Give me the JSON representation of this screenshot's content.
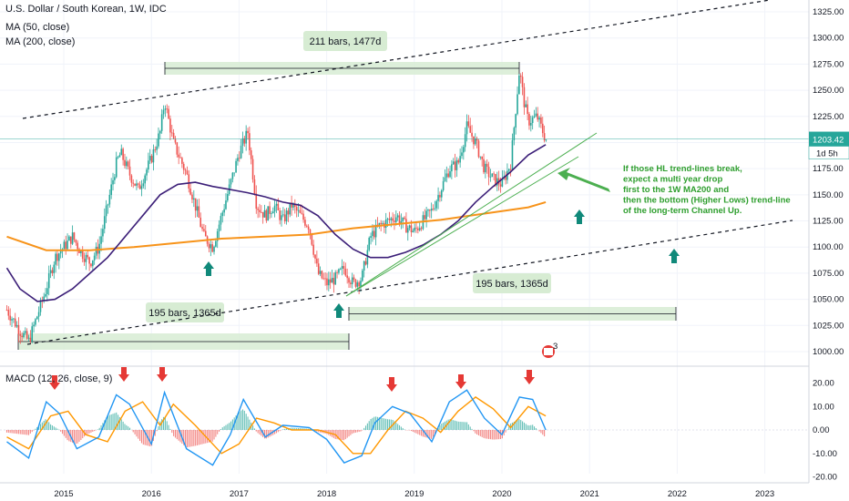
{
  "header": {
    "title": "U.S. Dollar / South Korean, 1W, IDC",
    "ma50": "MA (50, close)",
    "ma200": "MA (200, close)",
    "macd": "MACD (12, 26, close, 9)"
  },
  "price_badge": {
    "value": "1203.42",
    "countdown": "1d 5h"
  },
  "annotation": "If those HL trend-lines break, expect a multi year drop first to the 1W MA200 and then the bottom (Higher Lows) trend-line of the long-term Channel Up.",
  "annotation_lines": [
    "If those HL trend-lines break,",
    "expect a multi year drop",
    "first to the 1W MA200 and",
    "then the bottom (Higher Lows) trend-line",
    "of the long-term Channel Up."
  ],
  "measures": [
    {
      "label": "211 bars, 1477d"
    },
    {
      "label": "195 bars, 1365d"
    },
    {
      "label": "195 bars, 1365d"
    }
  ],
  "event_badge": "3",
  "colors": {
    "up": "#26a69a",
    "down": "#ef5350",
    "ma50": "#3c1f78",
    "ma200": "#f7931a",
    "macd": "#2196f3",
    "signal": "#ff9800",
    "trend": "#4caf50",
    "measure_fill": "#d7ecd3",
    "arrow_up": "#10897a",
    "arrow_down": "#e53935"
  },
  "chart_data": {
    "type": "line",
    "title": "U.S. Dollar / South Korean, 1W, IDC",
    "x_ticks": [
      "2015",
      "2016",
      "2017",
      "2018",
      "2019",
      "2020",
      "2021",
      "2022",
      "2023"
    ],
    "y_ticks": [
      1000,
      1025,
      1050,
      1075,
      1100,
      1125,
      1150,
      1175,
      1200,
      1225,
      1250,
      1275,
      1300,
      1325
    ],
    "ylim": [
      990,
      1335
    ],
    "macd_ticks": [
      "20.00",
      "10.00",
      "0.00",
      "-10.00",
      "-20.00"
    ],
    "macd_ylim": [
      -21,
      24
    ],
    "series": [
      {
        "name": "Price",
        "x": [
          2014.35,
          2014.5,
          2014.6,
          2014.7,
          2014.8,
          2014.9,
          2015.0,
          2015.1,
          2015.2,
          2015.3,
          2015.4,
          2015.5,
          2015.6,
          2015.65,
          2015.75,
          2015.85,
          2016.0,
          2016.1,
          2016.15,
          2016.25,
          2016.4,
          2016.5,
          2016.6,
          2016.7,
          2016.8,
          2016.9,
          2017.0,
          2017.1,
          2017.2,
          2017.3,
          2017.4,
          2017.5,
          2017.6,
          2017.7,
          2017.8,
          2017.9,
          2018.0,
          2018.1,
          2018.2,
          2018.3,
          2018.4,
          2018.5,
          2018.6,
          2018.7,
          2018.8,
          2018.9,
          2019.0,
          2019.1,
          2019.2,
          2019.3,
          2019.4,
          2019.5,
          2019.6,
          2019.7,
          2019.8,
          2019.9,
          2020.0,
          2020.1,
          2020.15,
          2020.2,
          2020.25,
          2020.3,
          2020.4,
          2020.5
        ],
        "values": [
          1040,
          1020,
          1010,
          1035,
          1060,
          1090,
          1100,
          1110,
          1095,
          1085,
          1100,
          1140,
          1180,
          1190,
          1170,
          1155,
          1185,
          1210,
          1240,
          1200,
          1170,
          1140,
          1110,
          1100,
          1130,
          1160,
          1190,
          1210,
          1140,
          1130,
          1140,
          1125,
          1140,
          1130,
          1120,
          1075,
          1065,
          1070,
          1080,
          1065,
          1070,
          1110,
          1120,
          1125,
          1130,
          1120,
          1115,
          1125,
          1135,
          1155,
          1175,
          1180,
          1215,
          1200,
          1175,
          1165,
          1160,
          1180,
          1225,
          1270,
          1240,
          1220,
          1225,
          1203
        ]
      },
      {
        "name": "MA (50, close)",
        "x": [
          2014.35,
          2014.5,
          2014.7,
          2014.9,
          2015.1,
          2015.3,
          2015.5,
          2015.7,
          2015.9,
          2016.1,
          2016.3,
          2016.5,
          2016.7,
          2016.9,
          2017.1,
          2017.3,
          2017.5,
          2017.7,
          2017.9,
          2018.1,
          2018.3,
          2018.5,
          2018.7,
          2018.9,
          2019.1,
          2019.3,
          2019.5,
          2019.7,
          2019.9,
          2020.1,
          2020.3,
          2020.5
        ],
        "values": [
          1080,
          1060,
          1048,
          1050,
          1060,
          1075,
          1090,
          1110,
          1130,
          1150,
          1160,
          1162,
          1158,
          1155,
          1152,
          1148,
          1143,
          1140,
          1130,
          1112,
          1098,
          1090,
          1090,
          1095,
          1102,
          1112,
          1125,
          1143,
          1158,
          1172,
          1188,
          1198
        ]
      },
      {
        "name": "MA (200, close)",
        "x": [
          2014.35,
          2014.8,
          2015.3,
          2015.8,
          2016.3,
          2016.8,
          2017.3,
          2017.8,
          2018.3,
          2018.8,
          2019.3,
          2019.8,
          2020.3,
          2020.5
        ],
        "values": [
          1110,
          1097,
          1097,
          1100,
          1104,
          1108,
          1110,
          1112,
          1118,
          1122,
          1126,
          1132,
          1138,
          1143
        ]
      }
    ],
    "macd_series": [
      {
        "name": "MACD",
        "x": [
          2014.35,
          2014.6,
          2014.8,
          2014.95,
          2015.15,
          2015.4,
          2015.6,
          2015.75,
          2016.0,
          2016.15,
          2016.4,
          2016.7,
          2016.9,
          2017.05,
          2017.3,
          2017.5,
          2017.8,
          2018.0,
          2018.2,
          2018.4,
          2018.55,
          2018.75,
          2018.95,
          2019.2,
          2019.4,
          2019.6,
          2019.8,
          2020.0,
          2020.2,
          2020.35,
          2020.5
        ],
        "values": [
          -5,
          -12,
          12,
          7,
          -8,
          -3,
          15,
          11,
          -6,
          16,
          -8,
          -15,
          -2,
          13,
          -3,
          2,
          1,
          -4,
          -14,
          -11,
          3,
          10,
          7,
          -5,
          12,
          17,
          5,
          -2,
          14,
          13,
          0
        ]
      },
      {
        "name": "Signal",
        "x": [
          2014.35,
          2014.6,
          2014.85,
          2015.05,
          2015.25,
          2015.5,
          2015.7,
          2015.9,
          2016.1,
          2016.25,
          2016.5,
          2016.8,
          2017.0,
          2017.2,
          2017.4,
          2017.6,
          2017.9,
          2018.1,
          2018.3,
          2018.5,
          2018.7,
          2018.9,
          2019.1,
          2019.3,
          2019.5,
          2019.7,
          2019.9,
          2020.1,
          2020.3,
          2020.5
        ],
        "values": [
          -3,
          -8,
          6,
          8,
          -2,
          -5,
          8,
          12,
          2,
          11,
          2,
          -10,
          -6,
          5,
          3,
          0,
          0,
          -2,
          -10,
          -10,
          0,
          8,
          5,
          -1,
          8,
          14,
          9,
          1,
          10,
          6
        ]
      }
    ]
  }
}
